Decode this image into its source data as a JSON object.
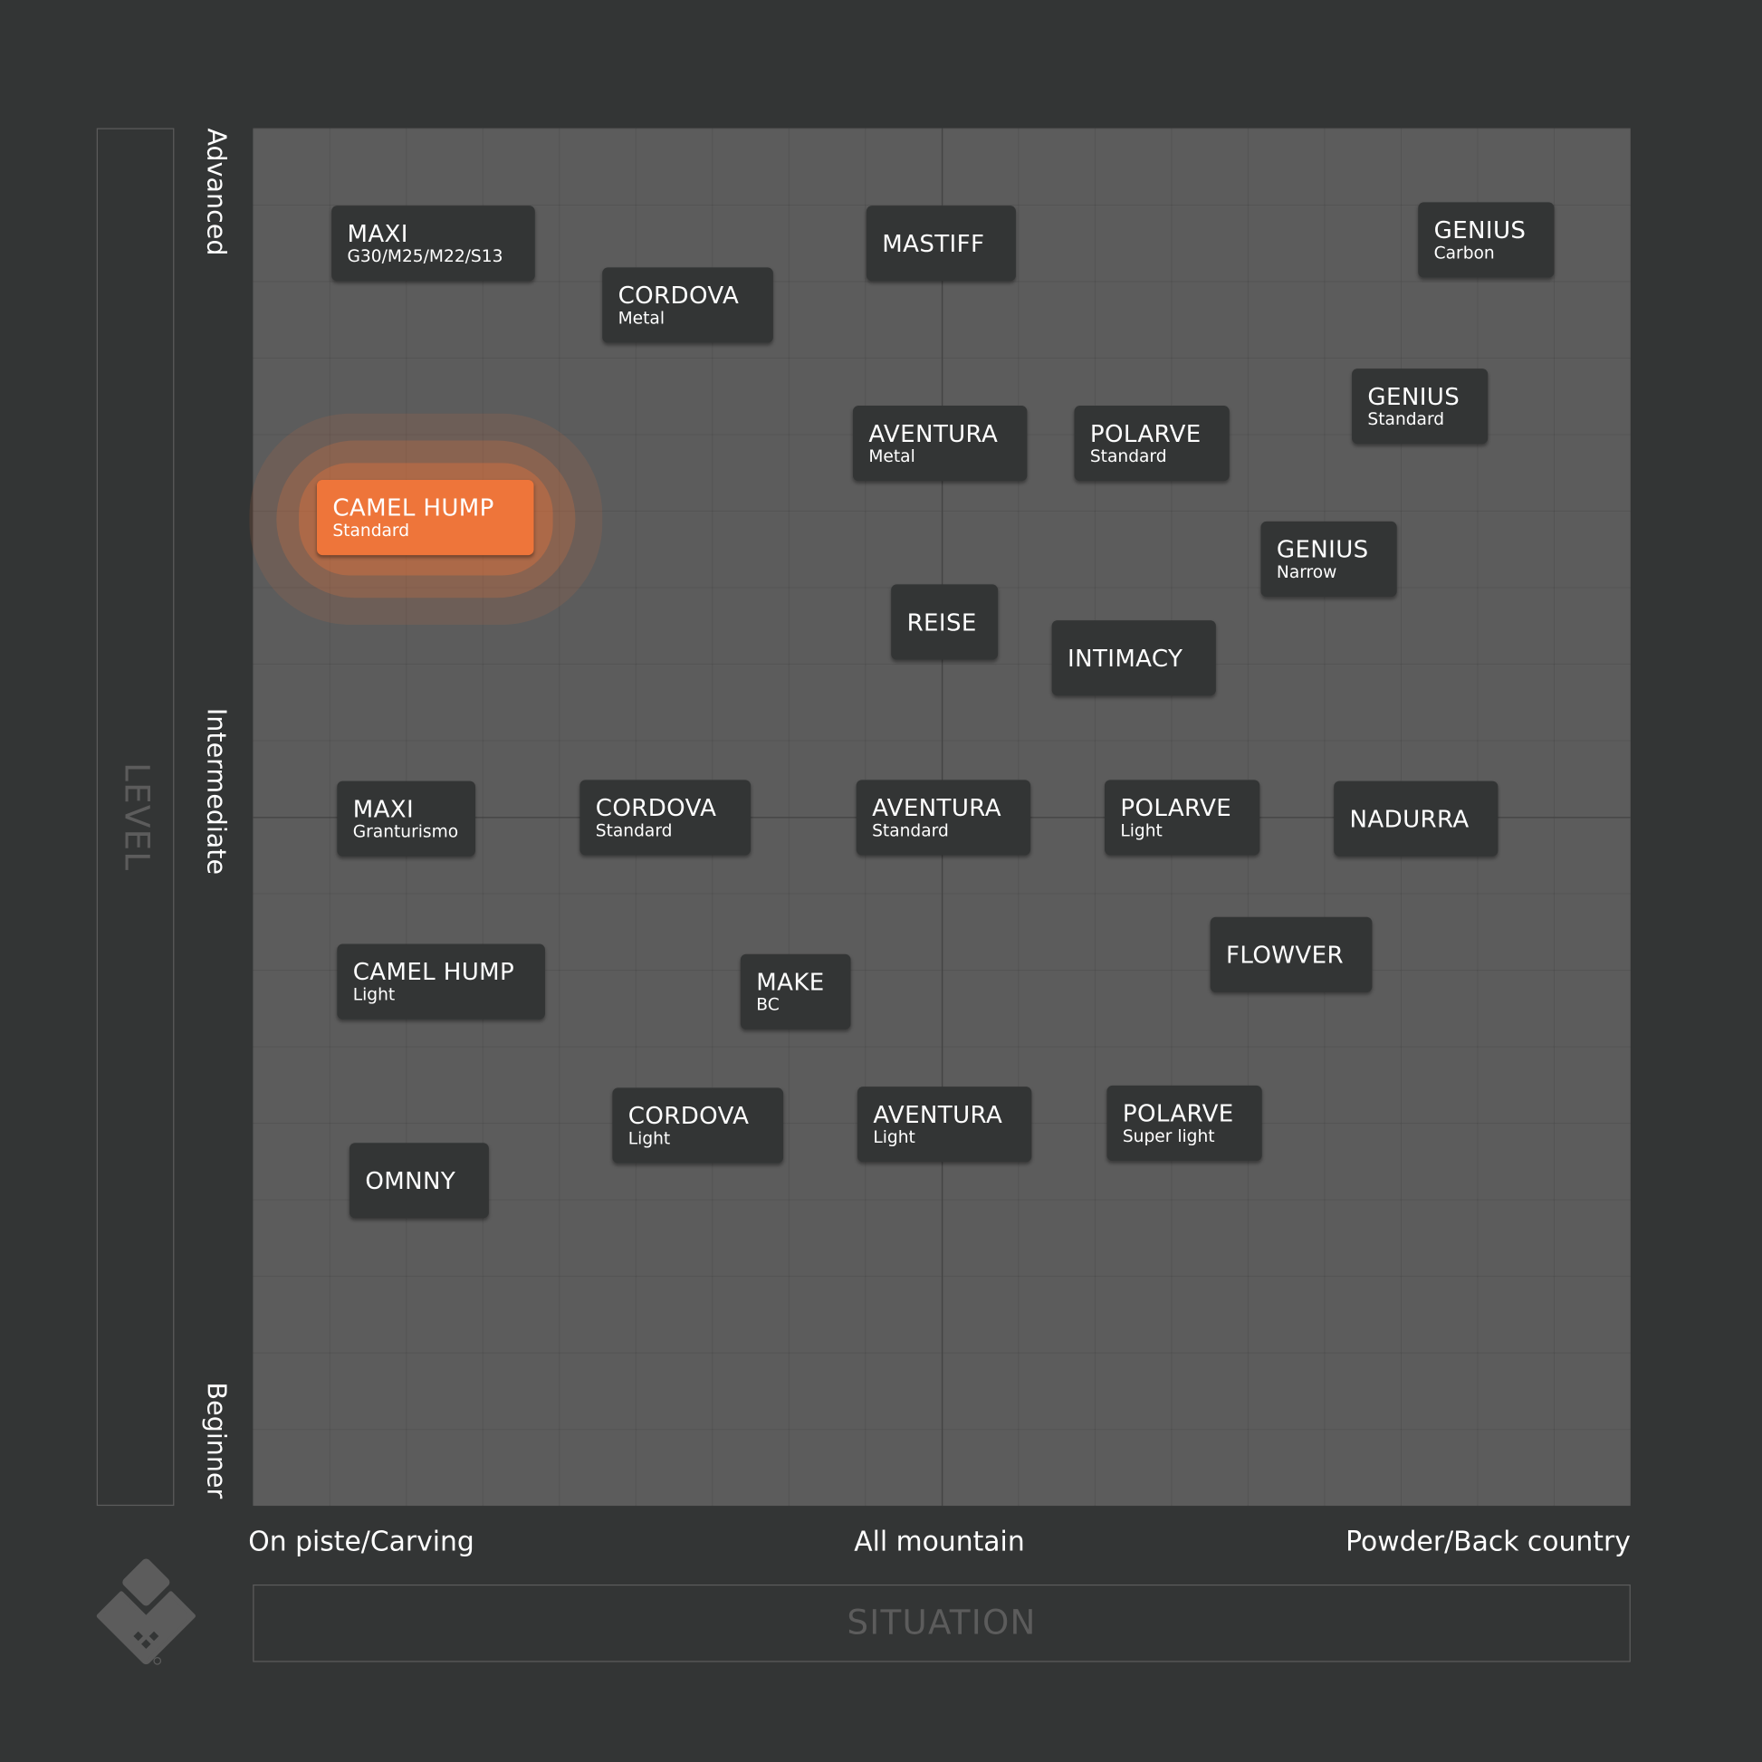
{
  "axes": {
    "y_title": "LEVEL",
    "x_title": "SITUATION",
    "y_ticks": [
      "Advanced",
      "Intermediate",
      "Beginner"
    ],
    "x_ticks": [
      "On piste/Carving",
      "All mountain",
      "Powder/Back country"
    ]
  },
  "colors": {
    "background": "#333535",
    "plot": "#5c5c5c",
    "card": "#333535",
    "highlight": "#ee753a"
  },
  "logo": "brand-diamond-logo",
  "cards": [
    {
      "title": "MAXI",
      "subtitle": "G30/M25/M22/S13"
    },
    {
      "title": "CORDOVA",
      "subtitle": "Metal"
    },
    {
      "title": "MASTIFF",
      "subtitle": ""
    },
    {
      "title": "GENIUS",
      "subtitle": "Carbon"
    },
    {
      "title": "GENIUS",
      "subtitle": "Standard"
    },
    {
      "title": "AVENTURA",
      "subtitle": "Metal"
    },
    {
      "title": "POLARVE",
      "subtitle": "Standard"
    },
    {
      "title": "CAMEL HUMP",
      "subtitle": "Standard",
      "highlighted": true
    },
    {
      "title": "GENIUS",
      "subtitle": "Narrow"
    },
    {
      "title": "REISE",
      "subtitle": ""
    },
    {
      "title": "INTIMACY",
      "subtitle": ""
    },
    {
      "title": "MAXI",
      "subtitle": "Granturismo"
    },
    {
      "title": "CORDOVA",
      "subtitle": "Standard"
    },
    {
      "title": "AVENTURA",
      "subtitle": "Standard"
    },
    {
      "title": "POLARVE",
      "subtitle": "Light"
    },
    {
      "title": "NADURRA",
      "subtitle": ""
    },
    {
      "title": "FLOWVER",
      "subtitle": ""
    },
    {
      "title": "CAMEL HUMP",
      "subtitle": "Light"
    },
    {
      "title": "MAKE",
      "subtitle": "BC"
    },
    {
      "title": "CORDOVA",
      "subtitle": "Light"
    },
    {
      "title": "AVENTURA",
      "subtitle": "Light"
    },
    {
      "title": "POLARVE",
      "subtitle": "Super light"
    },
    {
      "title": "OMNNY",
      "subtitle": ""
    }
  ]
}
